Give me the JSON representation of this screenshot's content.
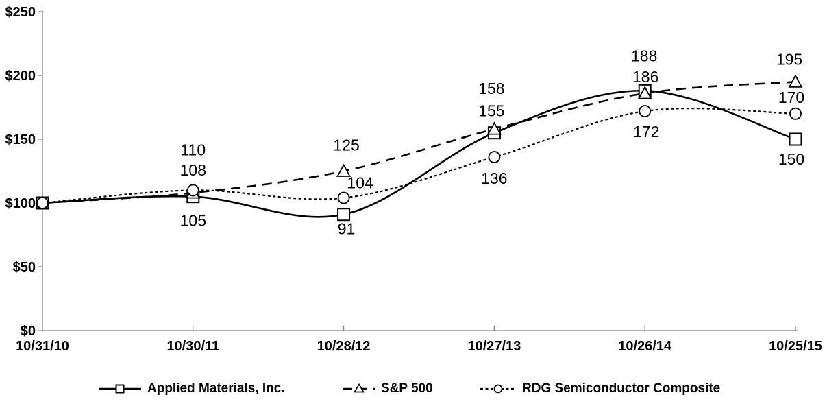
{
  "chart_data": {
    "type": "line",
    "title": "",
    "x_categories": [
      "10/31/10",
      "10/30/11",
      "10/28/12",
      "10/27/13",
      "10/26/14",
      "10/25/15"
    ],
    "y_tick_labels": [
      "$0",
      "$50",
      "$100",
      "$150",
      "$200",
      "$250"
    ],
    "y_tick_values": [
      0,
      50,
      100,
      150,
      200,
      250
    ],
    "ylim": [
      0,
      250
    ],
    "grid": "off",
    "legend_position": "bottom",
    "colors": {
      "series": "#000000",
      "text": "#000000",
      "axis": "#808080",
      "background": "#ffffff"
    },
    "series": [
      {
        "name": "Applied Materials, Inc.",
        "marker": "square",
        "line_style": "solid",
        "color": "#000000",
        "values": [
          100,
          105,
          91,
          155,
          188,
          150
        ],
        "data_labels": [
          null,
          "105",
          "91",
          "155",
          "188",
          "150"
        ],
        "label_offsets": [
          null,
          [
            0,
            35
          ],
          [
            4,
            21
          ],
          [
            -4,
            -32
          ],
          [
            -1,
            -51
          ],
          [
            -6,
            29
          ]
        ]
      },
      {
        "name": "S&P 500",
        "marker": "triangle",
        "line_style": "dashed",
        "color": "#000000",
        "values": [
          100,
          108,
          125,
          158,
          186,
          195
        ],
        "data_labels": [
          null,
          "108",
          "125",
          "158",
          "186",
          "195"
        ],
        "label_offsets": [
          null,
          [
            0,
            -33
          ],
          [
            4,
            -38
          ],
          [
            -4,
            -59
          ],
          [
            1,
            -24
          ],
          [
            -9,
            -33
          ]
        ]
      },
      {
        "name": "RDG Semiconductor Composite",
        "marker": "circle",
        "line_style": "dotted",
        "color": "#000000",
        "values": [
          100,
          110,
          104,
          136,
          172,
          170
        ],
        "data_labels": [
          null,
          "110",
          "104",
          "136",
          "172",
          "170"
        ],
        "label_offsets": [
          null,
          [
            0,
            -59
          ],
          [
            24,
            -22
          ],
          [
            0,
            31
          ],
          [
            2,
            30
          ],
          [
            -6,
            -24
          ]
        ]
      }
    ]
  }
}
